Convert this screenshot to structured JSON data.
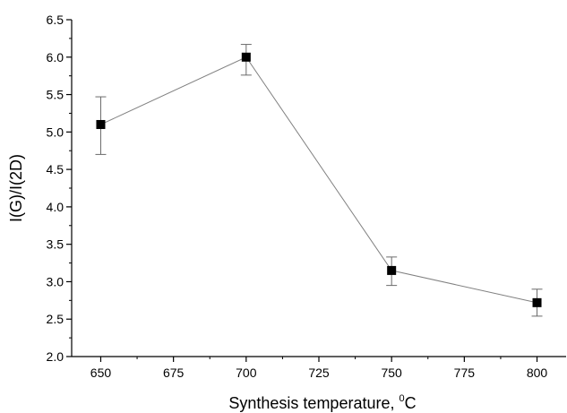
{
  "chart_data": {
    "type": "line",
    "xlabel": "Synthesis temperature, ",
    "xlabel_sup": "0",
    "xlabel_unit": "C",
    "ylabel": "I(G)/I(2D)",
    "xlim": [
      640,
      810
    ],
    "ylim": [
      2.0,
      6.5
    ],
    "x_ticks": [
      "650",
      "675",
      "700",
      "725",
      "750",
      "775",
      "800"
    ],
    "y_ticks": [
      "2.0",
      "2.5",
      "3.0",
      "3.5",
      "4.0",
      "4.5",
      "5.0",
      "5.5",
      "6.0",
      "6.5"
    ],
    "grid": false,
    "series": [
      {
        "x": [
          650,
          700,
          750,
          800
        ],
        "y": [
          5.1,
          6.0,
          3.15,
          2.72
        ],
        "err_low": [
          0.4,
          0.24,
          0.2,
          0.18
        ],
        "err_high": [
          0.37,
          0.17,
          0.18,
          0.18
        ],
        "marker": "square",
        "marker_color": "#000000",
        "line_color": "#808080"
      }
    ]
  }
}
